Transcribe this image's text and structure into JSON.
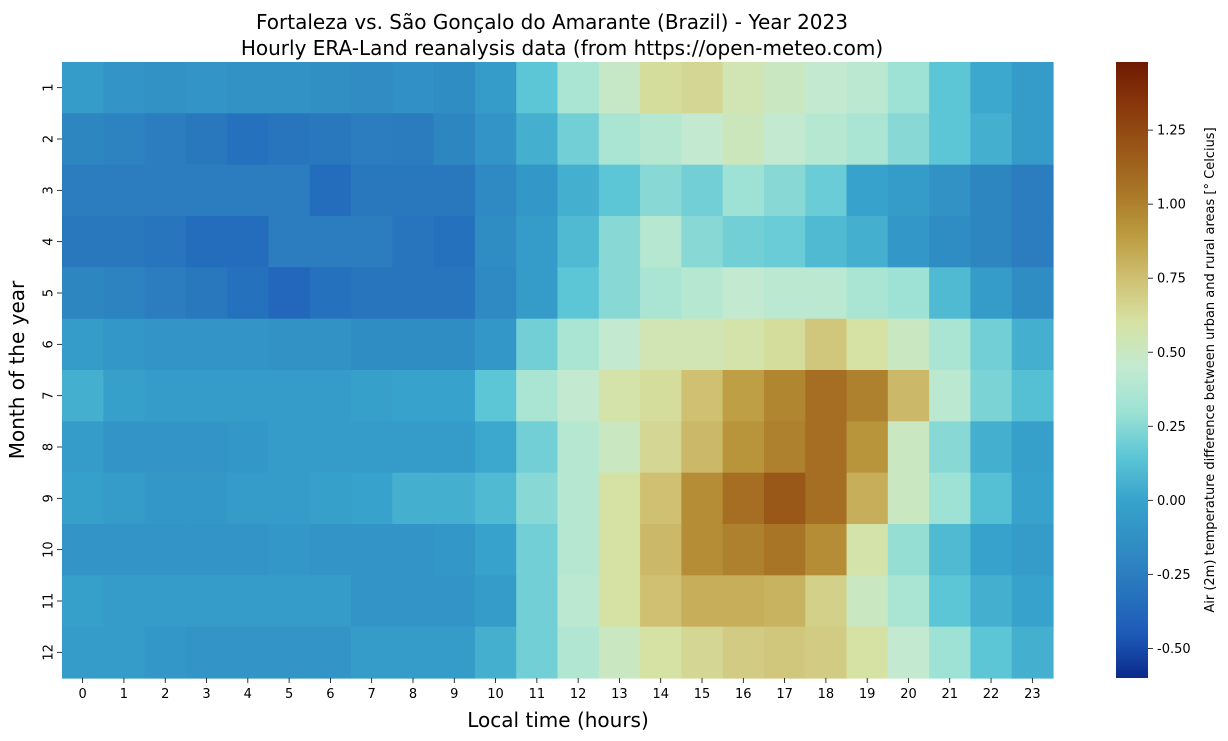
{
  "chart_data": {
    "type": "heatmap",
    "title": "Fortaleza vs. São Gonçalo do Amarante (Brazil) - Year 2023",
    "subtitle": "Hourly ERA-Land reanalysis data (from https://open-meteo.com)",
    "xlabel": "Local time (hours)",
    "ylabel": "Month of the year",
    "x_ticks": [
      "0",
      "1",
      "2",
      "3",
      "4",
      "5",
      "6",
      "7",
      "8",
      "9",
      "10",
      "11",
      "12",
      "13",
      "14",
      "15",
      "16",
      "17",
      "18",
      "19",
      "20",
      "21",
      "22",
      "23"
    ],
    "y_ticks": [
      "1",
      "2",
      "3",
      "4",
      "5",
      "6",
      "7",
      "8",
      "9",
      "10",
      "11",
      "12"
    ],
    "colorbar": {
      "label": "Air (2m) temperature difference between urban and rural areas [° Celcius]",
      "range": [
        -0.6,
        1.48
      ],
      "ticks": [
        "-0.50",
        "-0.25",
        "0.00",
        "0.25",
        "0.50",
        "0.75",
        "1.00",
        "1.25"
      ],
      "tick_values": [
        -0.5,
        -0.25,
        0.0,
        0.25,
        0.5,
        0.75,
        1.0,
        1.25
      ],
      "colormap_stops": [
        {
          "v": -0.6,
          "c": "#0a2a8c"
        },
        {
          "v": -0.45,
          "c": "#1e5bb8"
        },
        {
          "v": -0.2,
          "c": "#2e86c1"
        },
        {
          "v": 0.0,
          "c": "#37a3cc"
        },
        {
          "v": 0.15,
          "c": "#5dc6d6"
        },
        {
          "v": 0.3,
          "c": "#9de2d4"
        },
        {
          "v": 0.45,
          "c": "#c3ead0"
        },
        {
          "v": 0.6,
          "c": "#d6e2a4"
        },
        {
          "v": 0.75,
          "c": "#cfc072"
        },
        {
          "v": 0.9,
          "c": "#bb9a3e"
        },
        {
          "v": 1.05,
          "c": "#a87426"
        },
        {
          "v": 1.2,
          "c": "#985416"
        },
        {
          "v": 1.35,
          "c": "#86340a"
        },
        {
          "v": 1.48,
          "c": "#6e1a02"
        }
      ]
    },
    "values": [
      [
        -0.05,
        -0.1,
        -0.12,
        -0.1,
        -0.12,
        -0.12,
        -0.14,
        -0.16,
        -0.13,
        -0.15,
        -0.05,
        0.15,
        0.35,
        0.48,
        0.62,
        0.65,
        0.55,
        0.5,
        0.45,
        0.42,
        0.3,
        0.15,
        0.02,
        -0.05
      ],
      [
        -0.2,
        -0.22,
        -0.25,
        -0.28,
        -0.32,
        -0.3,
        -0.28,
        -0.25,
        -0.26,
        -0.2,
        -0.1,
        0.05,
        0.2,
        0.35,
        0.4,
        0.45,
        0.52,
        0.45,
        0.4,
        0.35,
        0.25,
        0.15,
        0.05,
        -0.05
      ],
      [
        -0.25,
        -0.25,
        -0.25,
        -0.25,
        -0.25,
        -0.25,
        -0.35,
        -0.28,
        -0.28,
        -0.28,
        -0.18,
        -0.08,
        0.05,
        0.15,
        0.25,
        0.2,
        0.3,
        0.25,
        0.18,
        0.0,
        -0.05,
        -0.12,
        -0.2,
        -0.25
      ],
      [
        -0.28,
        -0.28,
        -0.3,
        -0.35,
        -0.35,
        -0.25,
        -0.25,
        -0.25,
        -0.3,
        -0.32,
        -0.15,
        -0.05,
        0.1,
        0.25,
        0.4,
        0.25,
        0.2,
        0.18,
        0.1,
        0.05,
        -0.08,
        -0.15,
        -0.2,
        -0.25
      ],
      [
        -0.2,
        -0.22,
        -0.25,
        -0.28,
        -0.32,
        -0.38,
        -0.32,
        -0.3,
        -0.3,
        -0.3,
        -0.18,
        -0.05,
        0.15,
        0.25,
        0.35,
        0.4,
        0.45,
        0.42,
        0.42,
        0.35,
        0.3,
        0.1,
        -0.05,
        -0.15
      ],
      [
        -0.05,
        -0.08,
        -0.1,
        -0.1,
        -0.1,
        -0.12,
        -0.12,
        -0.15,
        -0.15,
        -0.15,
        -0.08,
        0.2,
        0.35,
        0.45,
        0.55,
        0.55,
        0.58,
        0.62,
        0.72,
        0.6,
        0.5,
        0.35,
        0.2,
        0.05
      ],
      [
        0.05,
        -0.02,
        -0.05,
        -0.05,
        -0.05,
        -0.05,
        -0.05,
        -0.02,
        0.0,
        0.0,
        0.15,
        0.35,
        0.45,
        0.58,
        0.62,
        0.75,
        0.88,
        0.98,
        1.08,
        1.0,
        0.78,
        0.42,
        0.22,
        0.12
      ],
      [
        -0.05,
        -0.1,
        -0.1,
        -0.1,
        -0.08,
        -0.05,
        -0.05,
        -0.05,
        -0.05,
        -0.05,
        0.02,
        0.2,
        0.4,
        0.5,
        0.65,
        0.78,
        0.92,
        1.0,
        1.08,
        0.92,
        0.5,
        0.25,
        0.05,
        -0.02
      ],
      [
        -0.02,
        -0.05,
        -0.08,
        -0.08,
        -0.05,
        -0.05,
        -0.02,
        0.0,
        0.05,
        0.05,
        0.1,
        0.25,
        0.4,
        0.6,
        0.75,
        0.95,
        1.08,
        1.18,
        1.08,
        0.82,
        0.5,
        0.3,
        0.12,
        0.0
      ],
      [
        -0.1,
        -0.1,
        -0.1,
        -0.1,
        -0.1,
        -0.08,
        -0.1,
        -0.1,
        -0.1,
        -0.08,
        0.0,
        0.2,
        0.4,
        0.6,
        0.78,
        0.95,
        1.0,
        1.05,
        0.95,
        0.58,
        0.28,
        0.1,
        0.0,
        -0.05
      ],
      [
        -0.02,
        -0.05,
        -0.05,
        -0.05,
        -0.05,
        -0.05,
        -0.05,
        -0.1,
        -0.1,
        -0.1,
        -0.05,
        0.2,
        0.42,
        0.6,
        0.75,
        0.82,
        0.82,
        0.8,
        0.68,
        0.5,
        0.35,
        0.15,
        0.05,
        0.0
      ],
      [
        -0.05,
        -0.05,
        -0.08,
        -0.1,
        -0.1,
        -0.1,
        -0.1,
        -0.05,
        -0.05,
        -0.05,
        0.05,
        0.2,
        0.38,
        0.5,
        0.6,
        0.65,
        0.7,
        0.72,
        0.7,
        0.6,
        0.45,
        0.3,
        0.15,
        0.05
      ]
    ]
  }
}
